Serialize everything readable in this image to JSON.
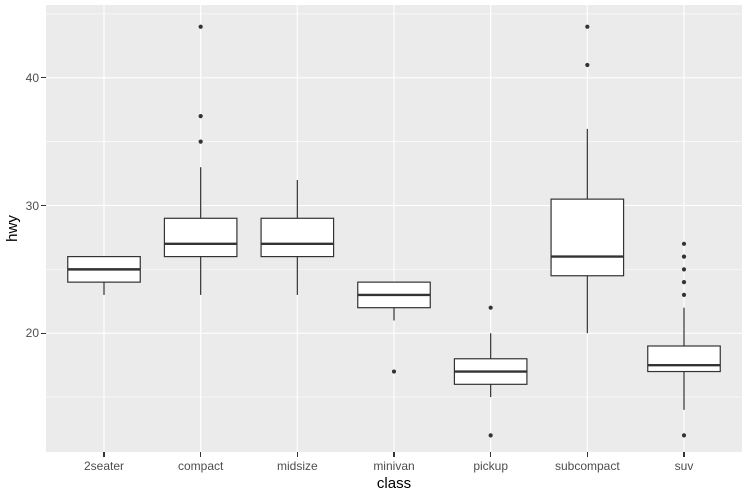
{
  "chart_data": {
    "type": "boxplot",
    "title": "",
    "xlabel": "class",
    "ylabel": "hwy",
    "categories": [
      "2seater",
      "compact",
      "midsize",
      "minivan",
      "pickup",
      "subcompact",
      "suv"
    ],
    "boxes": [
      {
        "category": "2seater",
        "whisker_low": 23,
        "q1": 24,
        "median": 25,
        "q3": 26,
        "whisker_high": 26,
        "outliers": []
      },
      {
        "category": "compact",
        "whisker_low": 23,
        "q1": 26,
        "median": 27,
        "q3": 29,
        "whisker_high": 33,
        "outliers": [
          35,
          37,
          44
        ]
      },
      {
        "category": "midsize",
        "whisker_low": 23,
        "q1": 26,
        "median": 27,
        "q3": 29,
        "whisker_high": 32,
        "outliers": []
      },
      {
        "category": "minivan",
        "whisker_low": 21,
        "q1": 22,
        "median": 23,
        "q3": 24,
        "whisker_high": 24,
        "outliers": [
          17
        ]
      },
      {
        "category": "pickup",
        "whisker_low": 15,
        "q1": 16,
        "median": 17,
        "q3": 18,
        "whisker_high": 20,
        "outliers": [
          22,
          12
        ]
      },
      {
        "category": "subcompact",
        "whisker_low": 20,
        "q1": 24.5,
        "median": 26,
        "q3": 30.5,
        "whisker_high": 36,
        "outliers": [
          41,
          44
        ]
      },
      {
        "category": "suv",
        "whisker_low": 14,
        "q1": 17,
        "median": 17.5,
        "q3": 19,
        "whisker_high": 22,
        "outliers": [
          23,
          24,
          25,
          26,
          27,
          12
        ]
      }
    ],
    "y_ticks": [
      20,
      30,
      40
    ],
    "y_minor_gridlines": [
      15,
      25,
      35,
      45
    ],
    "ylim": [
      10.7,
      45.7
    ],
    "grid": true,
    "legend": "none",
    "box_rel_width": 0.75,
    "style": {
      "panel_bg": "#EBEBEB",
      "grid_color": "#FFFFFF",
      "box_fill": "#FFFFFF",
      "stroke": "#333333",
      "axis_text_color": "#4D4D4D",
      "axis_title_color": "#000000",
      "tick_mark_color": "#333333",
      "background": "#FFFFFF"
    }
  }
}
